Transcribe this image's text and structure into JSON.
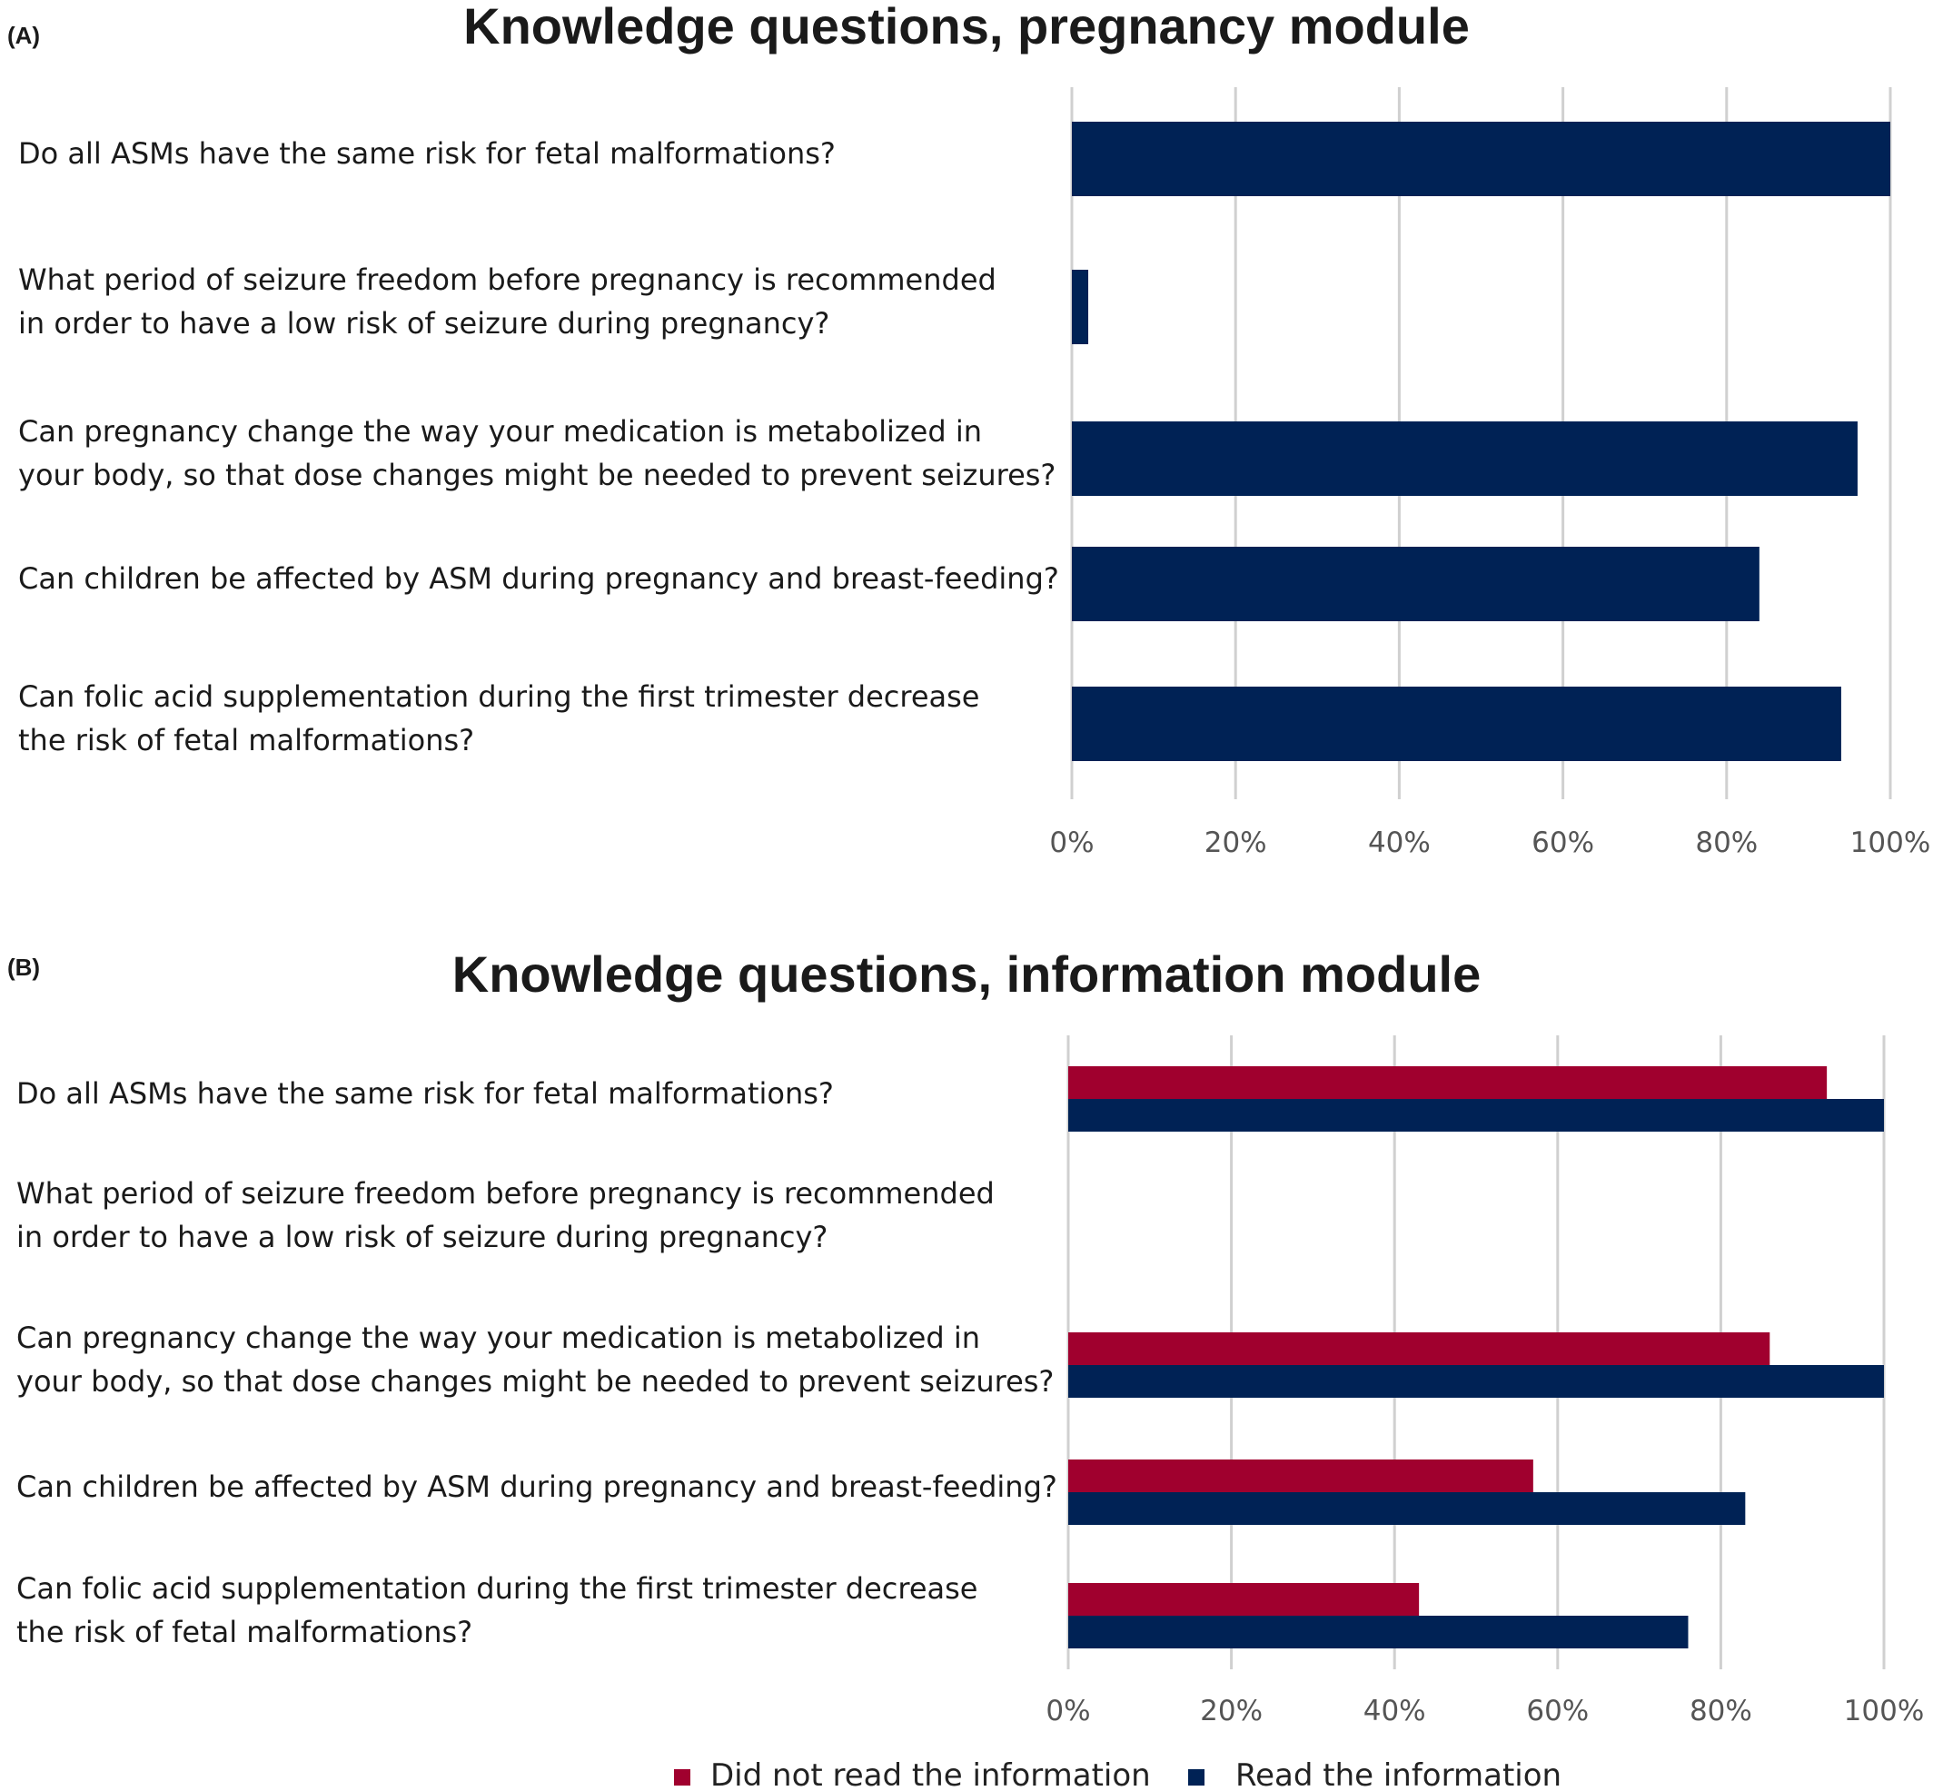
{
  "colors": {
    "did_not_read": "#a0002e",
    "read": "#002255",
    "grid": "#d0d0d0",
    "tick_text": "#555555"
  },
  "chart_data": [
    {
      "type": "bar",
      "orientation": "horizontal",
      "panel_label": "(A)",
      "title": "Knowledge questions, pregnancy module",
      "categories": [
        [
          "Do all ASMs have the same risk for fetal malformations?"
        ],
        [
          "What period of seizure freedom before pregnancy is recommended",
          "in order to have a low risk of seizure during pregnancy?"
        ],
        [
          "Can pregnancy change the way your medication is metabolized in",
          "your body, so that dose changes might be needed to prevent seizures?"
        ],
        [
          "Can children be affected by ASM during pregnancy and breast-feeding?"
        ],
        [
          "Can folic acid supplementation during the first trimester decrease",
          "the risk of fetal malformations?"
        ]
      ],
      "series": [
        {
          "values": [
            100,
            2,
            96,
            84,
            94
          ],
          "color": "#002255"
        }
      ],
      "xlim": [
        0,
        100
      ],
      "ticks": [
        "0%",
        "20%",
        "40%",
        "60%",
        "80%",
        "100%"
      ],
      "grid": "vertical",
      "legend": "none"
    },
    {
      "type": "bar",
      "orientation": "horizontal",
      "panel_label": "(B)",
      "title": "Knowledge questions, information module",
      "categories": [
        [
          "Do all ASMs have the same risk for fetal malformations?"
        ],
        [
          "What period of seizure freedom before pregnancy is recommended",
          "in order to have a low risk of seizure during pregnancy?"
        ],
        [
          "Can pregnancy change the way your medication is metabolized in",
          "your body, so that dose changes might be needed to prevent seizures?"
        ],
        [
          "Can children be affected by ASM during pregnancy and breast-feeding?"
        ],
        [
          "Can folic acid supplementation during the first trimester decrease",
          "the risk of fetal malformations?"
        ]
      ],
      "series": [
        {
          "name": "Did not read the information",
          "values": [
            93,
            0,
            86,
            57,
            43
          ],
          "color": "#a0002e"
        },
        {
          "name": "Read the information",
          "values": [
            100,
            0,
            100,
            83,
            76
          ],
          "color": "#002255"
        }
      ],
      "xlim": [
        0,
        100
      ],
      "ticks": [
        "0%",
        "20%",
        "40%",
        "60%",
        "80%",
        "100%"
      ],
      "grid": "vertical",
      "legend": "bottom-center"
    }
  ]
}
